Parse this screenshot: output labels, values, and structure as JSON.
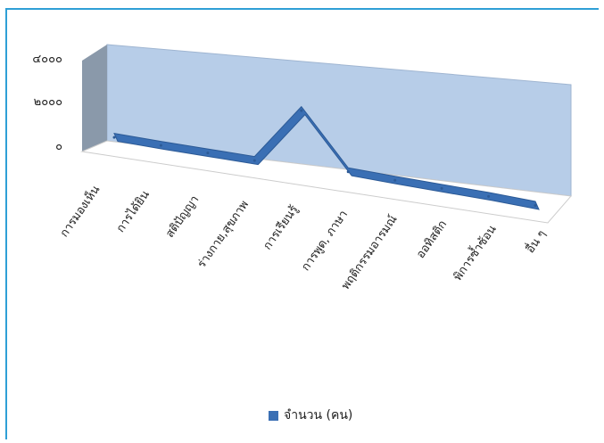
{
  "chart_data": {
    "type": "line",
    "style": "3d-ribbon",
    "title": "",
    "xlabel": "",
    "ylabel": "",
    "ylim": [
      0,
      4000
    ],
    "y_ticks": [
      "๔๐๐๐",
      "๒๐๐๐",
      "๐"
    ],
    "grid": false,
    "legend_position": "bottom",
    "categories": [
      "การมองเห็น",
      "การได้ยิน",
      "สติปัญญา",
      "ร่างกาย,สุขภาพ",
      "การเรียนรู้",
      "การพูด, ภาษา",
      "พฤติกรรมอารมณ์",
      "ออทิสติก",
      "พิการซ้ำซ้อน",
      "อื่น ๆ"
    ],
    "series": [
      {
        "name": "จำนวน (คน)",
        "values": [
          150,
          120,
          110,
          100,
          2600,
          250,
          200,
          160,
          130,
          60
        ]
      }
    ],
    "colors": {
      "series": "#3a6fb4",
      "back_wall": "#b7cde8",
      "side_wall": "#8a99aa",
      "frame": "#2f9fd6"
    }
  }
}
